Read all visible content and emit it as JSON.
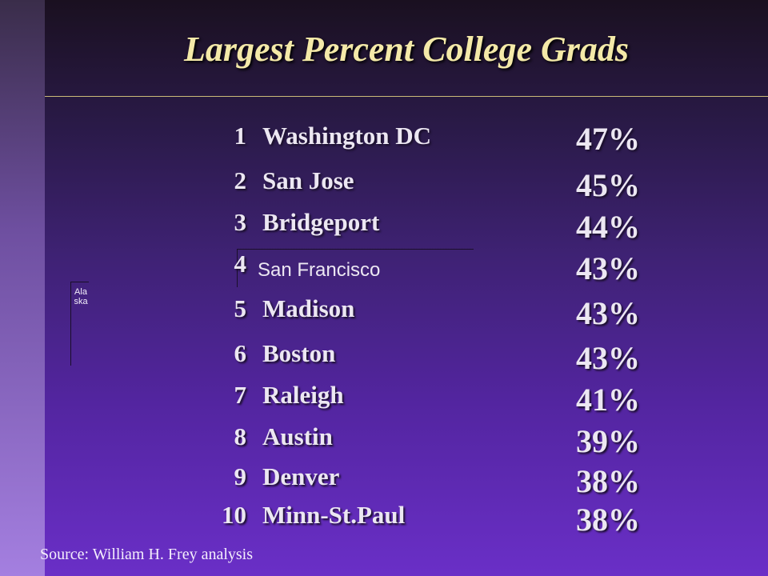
{
  "title": "Largest Percent College Grads",
  "rows": [
    {
      "rank": "1",
      "city": "Washington DC",
      "pct": "47%"
    },
    {
      "rank": "2",
      "city": "San Jose",
      "pct": "45%"
    },
    {
      "rank": "3",
      "city": "Bridgeport",
      "pct": "44%"
    },
    {
      "rank": "4",
      "city": "San Francisco",
      "pct": "43%"
    },
    {
      "rank": "5",
      "city": "Madison",
      "pct": "43%"
    },
    {
      "rank": "6",
      "city": "Boston",
      "pct": "43%"
    },
    {
      "rank": "7",
      "city": "Raleigh",
      "pct": "41%"
    },
    {
      "rank": "8",
      "city": "Austin",
      "pct": "39%"
    },
    {
      "rank": "9",
      "city": "Denver",
      "pct": "38%"
    },
    {
      "rank": "10",
      "city": "Minn-St.Paul",
      "pct": "38%"
    }
  ],
  "alaska_label": "Alaska",
  "source": "Source: William H. Frey analysis",
  "colors": {
    "title": "#f4e9a8",
    "text": "#ece7f2"
  }
}
